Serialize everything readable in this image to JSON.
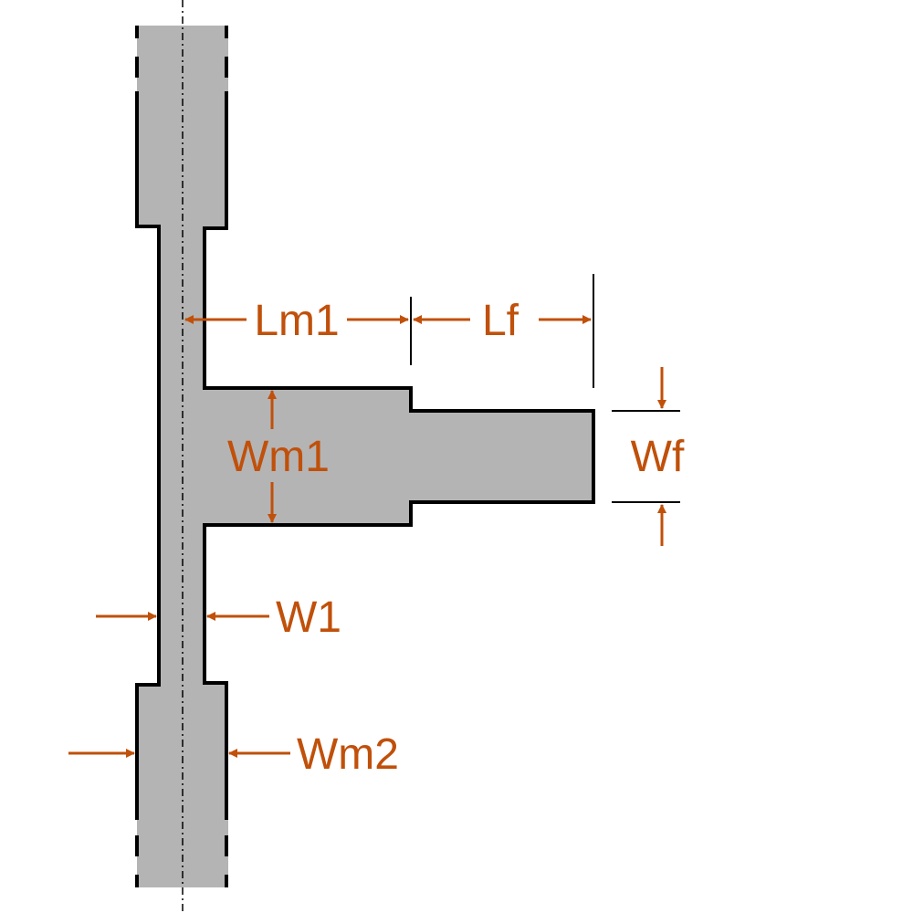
{
  "colors": {
    "substrate_fill": "#b4b4b4",
    "outline": "#000000",
    "dimension": "#c0500a",
    "background": "#ffffff"
  },
  "labels": {
    "lm1": "Lm1",
    "lf": "Lf",
    "wm1": "Wm1",
    "wf": "Wf",
    "w1": "W1",
    "wm2": "Wm2"
  }
}
